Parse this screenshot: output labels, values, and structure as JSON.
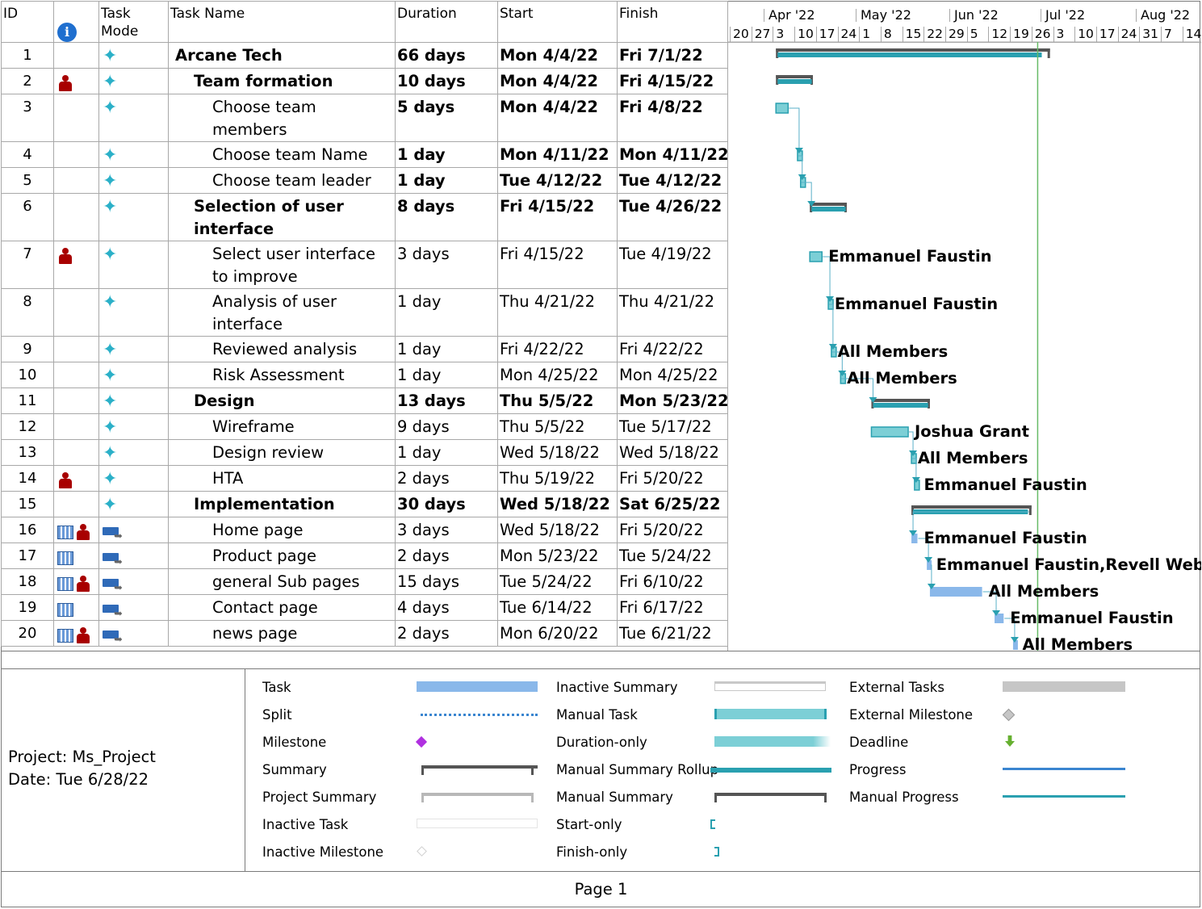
{
  "header": {
    "id": "ID",
    "indicator_icon": "info-icon",
    "mode": "Task Mode",
    "name": "Task Name",
    "duration": "Duration",
    "start": "Start",
    "finish": "Finish"
  },
  "tasks": [
    {
      "id": "1",
      "name": "Arcane Tech",
      "duration": "66 days",
      "start": "Mon 4/4/22",
      "finish": "Fri 7/1/22",
      "level": 0,
      "summary": true,
      "bold_dates": true,
      "person": false,
      "calendar": false,
      "mode": "manual",
      "resource": ""
    },
    {
      "id": "2",
      "name": "Team formation",
      "duration": "10 days",
      "start": "Mon 4/4/22",
      "finish": "Fri 4/15/22",
      "level": 1,
      "summary": true,
      "bold_dates": true,
      "person": true,
      "calendar": false,
      "mode": "manual",
      "resource": ""
    },
    {
      "id": "3",
      "name": "Choose team members",
      "duration": "5 days",
      "start": "Mon 4/4/22",
      "finish": "Fri 4/8/22",
      "level": 2,
      "summary": false,
      "bold_dates": true,
      "person": false,
      "calendar": false,
      "mode": "manual",
      "resource": ""
    },
    {
      "id": "4",
      "name": "Choose team Name",
      "duration": "1 day",
      "start": "Mon 4/11/22",
      "finish": "Mon 4/11/22",
      "level": 2,
      "summary": false,
      "bold_dates": true,
      "person": false,
      "calendar": false,
      "mode": "manual",
      "resource": ""
    },
    {
      "id": "5",
      "name": "Choose team leader",
      "duration": "1 day",
      "start": "Tue 4/12/22",
      "finish": "Tue 4/12/22",
      "level": 2,
      "summary": false,
      "bold_dates": true,
      "person": false,
      "calendar": false,
      "mode": "manual",
      "resource": ""
    },
    {
      "id": "6",
      "name": "Selection of user interface",
      "duration": "8 days",
      "start": "Fri 4/15/22",
      "finish": "Tue 4/26/22",
      "level": 1,
      "summary": true,
      "bold_dates": true,
      "person": false,
      "calendar": false,
      "mode": "manual",
      "resource": ""
    },
    {
      "id": "7",
      "name": "Select user interface to improve",
      "duration": "3 days",
      "start": "Fri 4/15/22",
      "finish": "Tue 4/19/22",
      "level": 2,
      "summary": false,
      "bold_dates": false,
      "person": true,
      "calendar": false,
      "mode": "manual",
      "resource": "Emmanuel Faustin"
    },
    {
      "id": "8",
      "name": "Analysis of user interface",
      "duration": "1 day",
      "start": "Thu 4/21/22",
      "finish": "Thu 4/21/22",
      "level": 2,
      "summary": false,
      "bold_dates": false,
      "person": false,
      "calendar": false,
      "mode": "manual",
      "resource": "Emmanuel Faustin"
    },
    {
      "id": "9",
      "name": "Reviewed analysis",
      "duration": "1 day",
      "start": "Fri 4/22/22",
      "finish": "Fri 4/22/22",
      "level": 2,
      "summary": false,
      "bold_dates": false,
      "person": false,
      "calendar": false,
      "mode": "manual",
      "resource": "All Members"
    },
    {
      "id": "10",
      "name": "Risk Assessment",
      "duration": "1 day",
      "start": "Mon 4/25/22",
      "finish": "Mon 4/25/22",
      "level": 2,
      "summary": false,
      "bold_dates": false,
      "person": false,
      "calendar": false,
      "mode": "manual",
      "resource": "All Members"
    },
    {
      "id": "11",
      "name": "Design",
      "duration": "13 days",
      "start": "Thu 5/5/22",
      "finish": "Mon 5/23/22",
      "level": 1,
      "summary": true,
      "bold_dates": true,
      "person": false,
      "calendar": false,
      "mode": "manual",
      "resource": ""
    },
    {
      "id": "12",
      "name": "Wireframe",
      "duration": "9 days",
      "start": "Thu 5/5/22",
      "finish": "Tue 5/17/22",
      "level": 2,
      "summary": false,
      "bold_dates": false,
      "person": false,
      "calendar": false,
      "mode": "manual",
      "resource": "Joshua Grant"
    },
    {
      "id": "13",
      "name": "Design review",
      "duration": "1 day",
      "start": "Wed 5/18/22",
      "finish": "Wed 5/18/22",
      "level": 2,
      "summary": false,
      "bold_dates": false,
      "person": false,
      "calendar": false,
      "mode": "manual",
      "resource": "All Members"
    },
    {
      "id": "14",
      "name": "HTA",
      "duration": "2 days",
      "start": "Thu 5/19/22",
      "finish": "Fri 5/20/22",
      "level": 2,
      "summary": false,
      "bold_dates": false,
      "person": true,
      "calendar": false,
      "mode": "manual",
      "resource": "Emmanuel Faustin"
    },
    {
      "id": "15",
      "name": "Implementation",
      "duration": "30 days",
      "start": "Wed 5/18/22",
      "finish": "Sat 6/25/22",
      "level": 1,
      "summary": true,
      "bold_dates": true,
      "person": false,
      "calendar": false,
      "mode": "manual",
      "resource": ""
    },
    {
      "id": "16",
      "name": "Home page",
      "duration": "3 days",
      "start": "Wed 5/18/22",
      "finish": "Fri 5/20/22",
      "level": 2,
      "summary": false,
      "bold_dates": false,
      "person": true,
      "calendar": true,
      "mode": "auto",
      "resource": "Emmanuel Faustin"
    },
    {
      "id": "17",
      "name": "Product page",
      "duration": "2 days",
      "start": "Mon 5/23/22",
      "finish": "Tue 5/24/22",
      "level": 2,
      "summary": false,
      "bold_dates": false,
      "person": false,
      "calendar": true,
      "mode": "auto",
      "resource": "Emmanuel Faustin,Revell Webster"
    },
    {
      "id": "18",
      "name": "general Sub pages",
      "duration": "15 days",
      "start": "Tue 5/24/22",
      "finish": "Fri 6/10/22",
      "level": 2,
      "summary": false,
      "bold_dates": false,
      "person": true,
      "calendar": true,
      "mode": "auto",
      "resource": "All Members"
    },
    {
      "id": "19",
      "name": "Contact page",
      "duration": "4 days",
      "start": "Tue 6/14/22",
      "finish": "Fri 6/17/22",
      "level": 2,
      "summary": false,
      "bold_dates": false,
      "person": false,
      "calendar": true,
      "mode": "auto",
      "resource": "Emmanuel Faustin"
    },
    {
      "id": "20",
      "name": "news page",
      "duration": "2 days",
      "start": "Mon 6/20/22",
      "finish": "Tue 6/21/22",
      "level": 2,
      "summary": false,
      "bold_dates": false,
      "person": true,
      "calendar": true,
      "mode": "auto",
      "resource": "All Members"
    }
  ],
  "timeline": {
    "months": [
      "Apr '22",
      "May '22",
      "Jun '22",
      "Jul '22",
      "Aug '22"
    ],
    "days": [
      "20",
      "27",
      "3",
      "10",
      "17",
      "24",
      "1",
      "8",
      "15",
      "22",
      "29",
      "5",
      "12",
      "19",
      "26",
      "3",
      "10",
      "17",
      "24",
      "31",
      "7",
      "14"
    ],
    "status_date": "6/28/22"
  },
  "project": {
    "name_line": "Project: Ms_Project",
    "date_line": "Date: Tue 6/28/22"
  },
  "legend": {
    "col1": [
      "Task",
      "Split",
      "Milestone",
      "Summary",
      "Project Summary",
      "Inactive Task",
      "Inactive Milestone"
    ],
    "col2": [
      "Inactive Summary",
      "Manual Task",
      "Duration-only",
      "Manual Summary Rollup",
      "Manual Summary",
      "Start-only",
      "Finish-only"
    ],
    "col3": [
      "External Tasks",
      "External Milestone",
      "Deadline",
      "Progress",
      "Manual Progress"
    ]
  },
  "colors": {
    "manual_task": "#2aa0b0",
    "manual_task_light": "#7ccfd6",
    "auto_task": "#8ab8ea",
    "summary": "#555555",
    "person": "#a80000",
    "status_line": "#66bb66",
    "milestone": "#b030e0",
    "deadline": "#66b030",
    "progress": "#3a85d0"
  },
  "footer": {
    "page": "Page 1"
  }
}
